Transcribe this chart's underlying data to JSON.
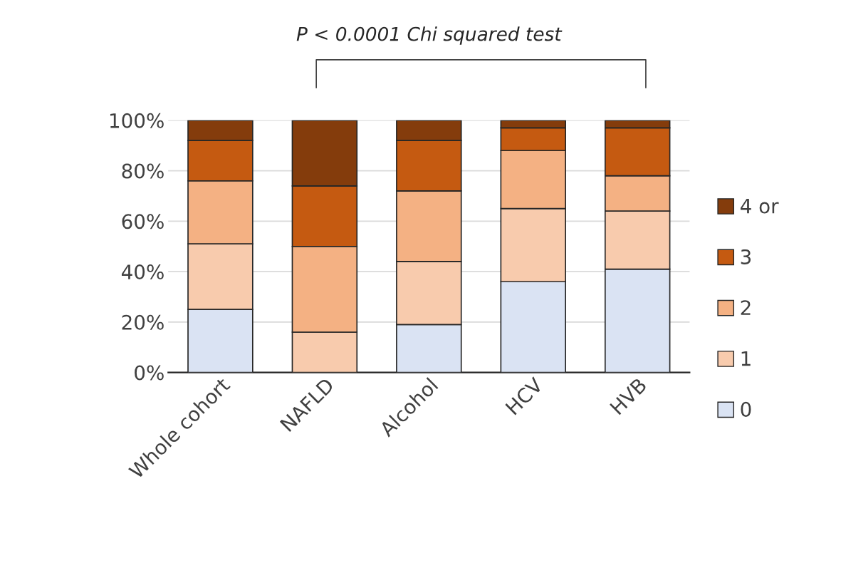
{
  "chart_data": {
    "type": "bar",
    "stacked": true,
    "categories": [
      "Whole cohort",
      "NAFLD",
      "Alcohol",
      "HCV",
      "HVB"
    ],
    "series": [
      {
        "name": "0",
        "color": "#dae3f3",
        "values": [
          25,
          0,
          19,
          36,
          41
        ]
      },
      {
        "name": "1",
        "color": "#f8cbad",
        "values": [
          26,
          16,
          25,
          29,
          23
        ]
      },
      {
        "name": "2",
        "color": "#f4b183",
        "values": [
          25,
          34,
          28,
          23,
          14
        ]
      },
      {
        "name": "3",
        "color": "#c55a11",
        "values": [
          16,
          24,
          20,
          9,
          19
        ]
      },
      {
        "name": "4 or",
        "color": "#843c0c",
        "values": [
          8,
          26,
          8,
          3,
          3
        ]
      }
    ],
    "ylim": [
      0,
      100
    ],
    "yticks": [
      {
        "value": 0,
        "label": "0%"
      },
      {
        "value": 20,
        "label": "20%"
      },
      {
        "value": 40,
        "label": "40%"
      },
      {
        "value": 60,
        "label": "60%"
      },
      {
        "value": 80,
        "label": "80%"
      },
      {
        "value": 100,
        "label": "100%"
      }
    ],
    "grid": "y",
    "legend": "right",
    "annotations": [
      "P < 0.0001 Chi squared test"
    ]
  }
}
